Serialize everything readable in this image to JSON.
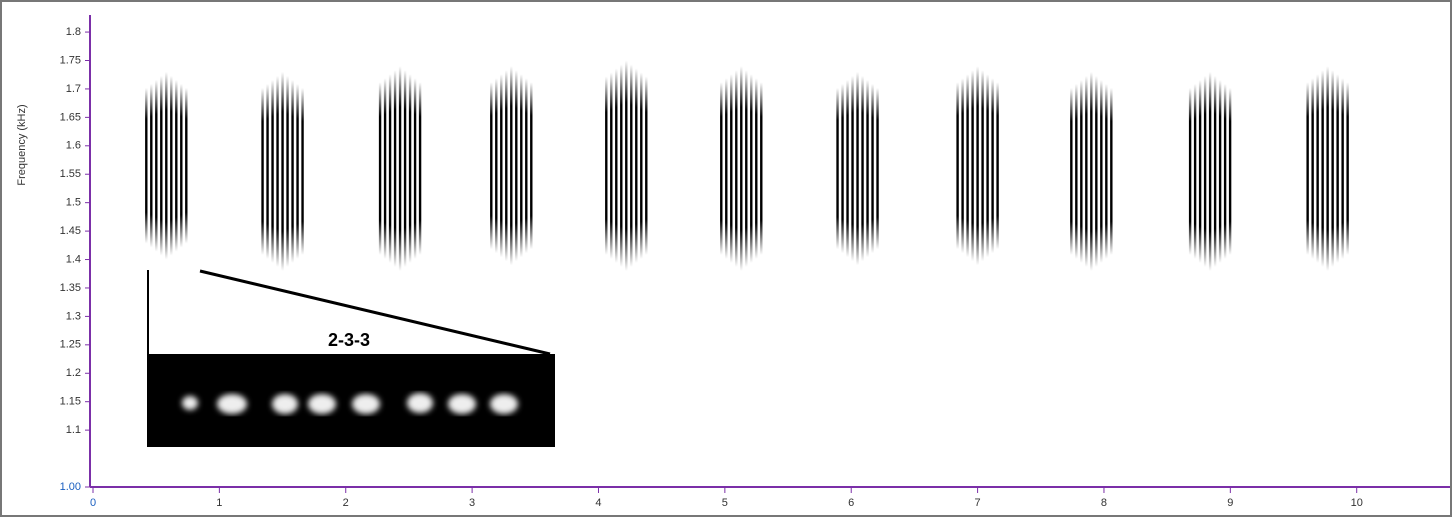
{
  "chart_data": {
    "type": "spectrogram",
    "y_label": "Frequency (kHz)",
    "annotation": "2-3-3",
    "x": [
      0.58,
      1.5,
      2.43,
      3.31,
      4.22,
      5.13,
      6.05,
      7.0,
      7.9,
      8.84,
      9.77
    ],
    "low": [
      1.4,
      1.38,
      1.38,
      1.39,
      1.38,
      1.38,
      1.39,
      1.39,
      1.38,
      1.38,
      1.38
    ],
    "high": [
      1.73,
      1.73,
      1.74,
      1.74,
      1.75,
      1.74,
      1.73,
      1.74,
      1.73,
      1.73,
      1.74
    ],
    "color": "#000000",
    "axis_color": "#7b2fa8",
    "xlim": [
      0,
      10.58
    ],
    "ylim": [
      1.0,
      1.83
    ],
    "xticks": [
      0,
      1,
      2,
      3,
      4,
      5,
      6,
      7,
      8,
      9,
      10
    ],
    "yticks": [
      {
        "value": 1.0,
        "label": "1.00"
      },
      1.1,
      1.15,
      1.2,
      1.25,
      1.3,
      1.35,
      1.4,
      1.45,
      1.5,
      1.55,
      1.6,
      1.65,
      1.7,
      1.75,
      1.8
    ]
  }
}
